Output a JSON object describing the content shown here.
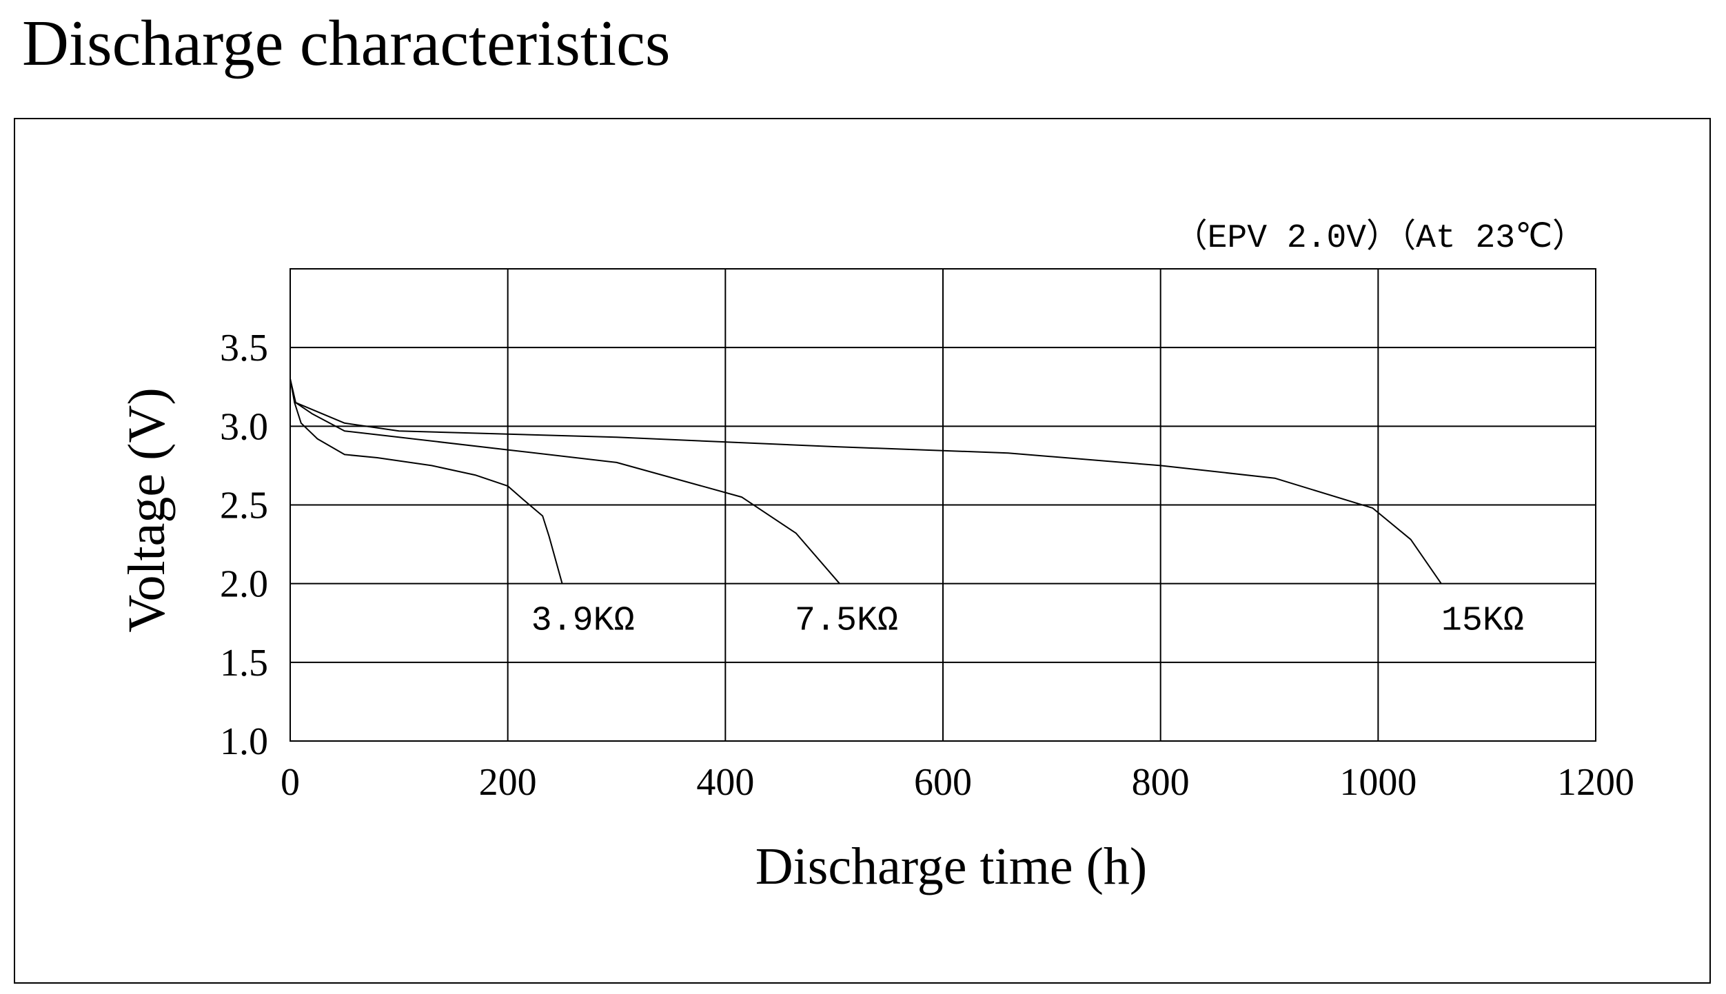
{
  "page": {
    "title": "Discharge characteristics"
  },
  "chart_data": {
    "type": "line",
    "title": "Discharge characteristics",
    "annotation": "（EPV 2.0V）（At 23℃）",
    "xlabel": "Discharge time (h)",
    "ylabel": "Voltage (V)",
    "xlim": [
      0,
      1200
    ],
    "ylim": [
      1.0,
      4.0
    ],
    "x_ticks": [
      0,
      200,
      400,
      600,
      800,
      1000,
      1200
    ],
    "x_tick_labels": [
      "0",
      "200",
      "400",
      "600",
      "800",
      "1000",
      "1200"
    ],
    "y_ticks": [
      1.0,
      1.5,
      2.0,
      2.5,
      3.0,
      3.5
    ],
    "y_tick_labels": [
      "1.0",
      "1.5",
      "2.0",
      "2.5",
      "3.0",
      "3.5"
    ],
    "grid": true,
    "legend": "none",
    "series": [
      {
        "name": "3.9KΩ",
        "x": [
          0,
          4,
          10,
          25,
          50,
          80,
          130,
          170,
          200,
          215,
          232,
          238,
          250
        ],
        "y": [
          3.3,
          3.15,
          3.02,
          2.92,
          2.82,
          2.8,
          2.75,
          2.69,
          2.62,
          2.53,
          2.43,
          2.3,
          2.0
        ]
      },
      {
        "name": "7.5KΩ",
        "x": [
          0,
          5,
          20,
          50,
          100,
          200,
          300,
          415,
          465,
          505
        ],
        "y": [
          3.3,
          3.15,
          3.08,
          2.97,
          2.93,
          2.85,
          2.77,
          2.55,
          2.32,
          2.0
        ]
      },
      {
        "name": "15KΩ",
        "x": [
          0,
          5,
          50,
          100,
          300,
          500,
          660,
          800,
          905,
          995,
          1030,
          1058
        ],
        "y": [
          3.3,
          3.15,
          3.02,
          2.97,
          2.93,
          2.87,
          2.83,
          2.75,
          2.67,
          2.48,
          2.28,
          2.0
        ]
      }
    ]
  }
}
